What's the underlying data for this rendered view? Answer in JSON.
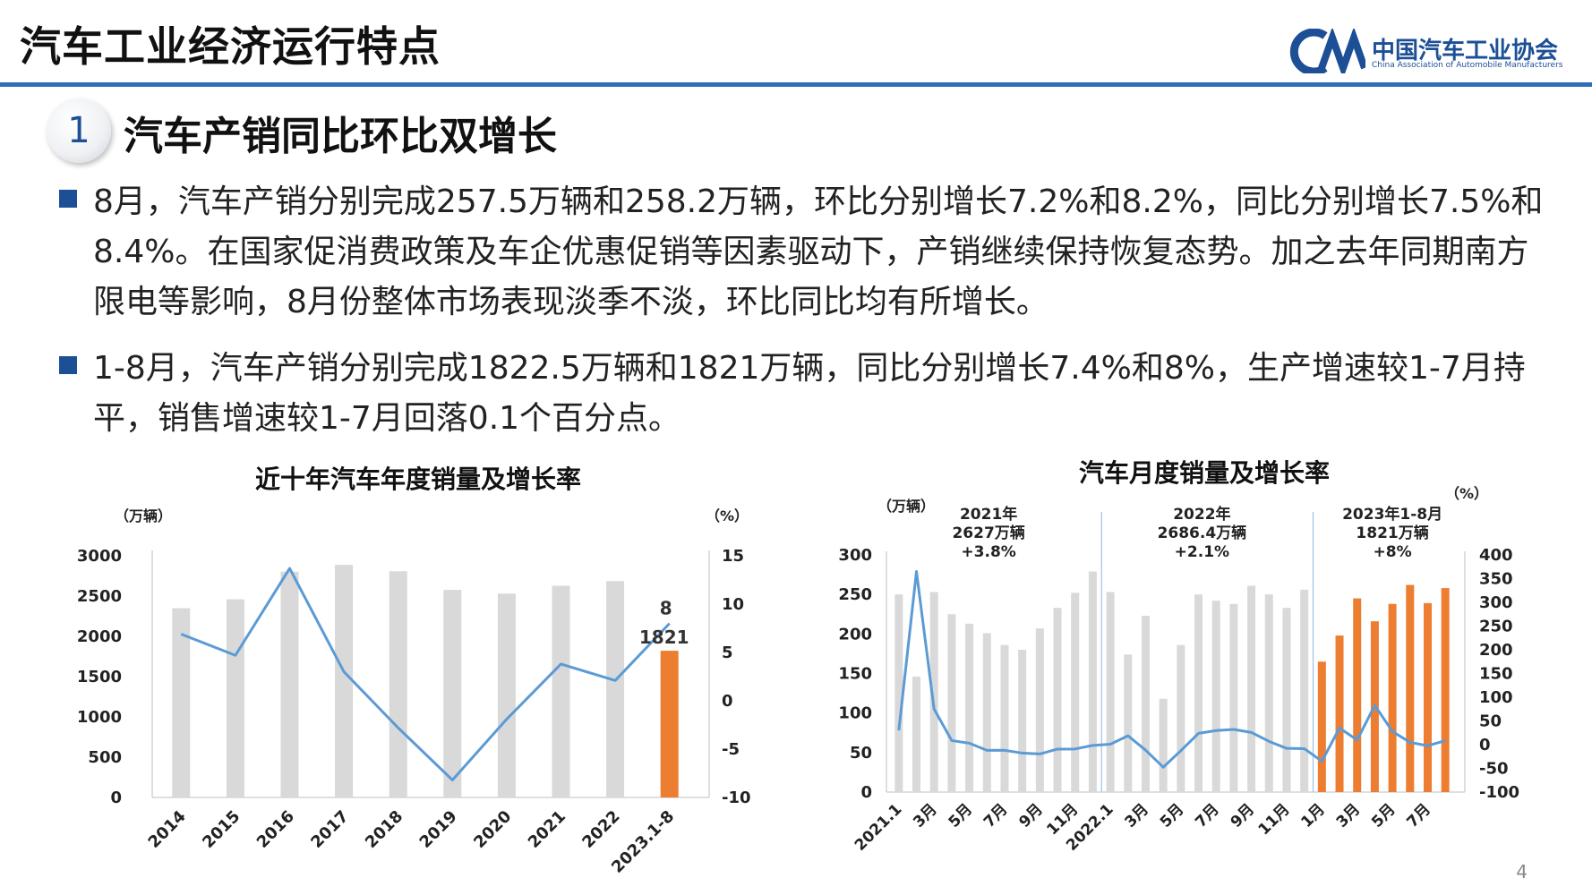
{
  "header": {
    "title": "汽车工业经济运行特点",
    "logo_cn": "中国汽车工业协会",
    "logo_en": "China Association of Automobile Manufacturers"
  },
  "section": {
    "number": "1",
    "title": "汽车产销同比环比双增长"
  },
  "bullets": [
    "8月，汽车产销分别完成257.5万辆和258.2万辆，环比分别增长7.2%和8.2%，同比分别增长7.5%和8.4%。在国家促消费政策及车企优惠促销等因素驱动下，产销继续保持恢复态势。加之去年同期南方限电等影响，8月份整体市场表现淡季不淡，环比同比均有所增长。",
    "1-8月，汽车产销分别完成1822.5万辆和1821万辆，同比分别增长7.4%和8%，生产增速较1-7月持平，销售增速较1-7月回落0.1个百分点。"
  ],
  "page_number": "4",
  "colors": {
    "accent": "#1c4f95",
    "rule": "#2f6fb5",
    "bar_gray": "#d9d9d9",
    "bar_orange": "#ed7d31",
    "line_blue": "#5b9bd5"
  },
  "chart_data": [
    {
      "type": "bar",
      "title": "近十年汽车年度销量及增长率",
      "y_unit_left": "（万辆）",
      "y_unit_right": "（%）",
      "categories": [
        "2014",
        "2015",
        "2016",
        "2017",
        "2018",
        "2019",
        "2020",
        "2021",
        "2022",
        "2023.1-8"
      ],
      "series": [
        {
          "type": "bar",
          "values": [
            2349,
            2460,
            2803,
            2888,
            2808,
            2577,
            2531,
            2628,
            2686,
            1821
          ]
        },
        {
          "type": "line",
          "axis": "right",
          "values": [
            6.9,
            4.7,
            13.7,
            3.0,
            -2.8,
            -8.2,
            -1.9,
            3.8,
            2.1,
            8
          ]
        }
      ],
      "highlight_index": 9,
      "data_labels": {
        "line_last": "8",
        "bar_last": "1821"
      },
      "ylim_left": [
        0,
        3000
      ],
      "yticks_left": [
        0,
        500,
        1000,
        1500,
        2000,
        2500,
        3000
      ],
      "ylim_right": [
        -10,
        15
      ],
      "yticks_right": [
        -10,
        -5,
        0,
        5,
        10,
        15
      ],
      "grid": false
    },
    {
      "type": "bar",
      "title": "汽车月度销量及增长率",
      "y_unit_left": "（万辆）",
      "y_unit_right": "（%）",
      "categories": [
        "2021.1",
        "2021.2",
        "2021.3",
        "2021.4",
        "2021.5",
        "2021.6",
        "2021.7",
        "2021.8",
        "2021.9",
        "2021.10",
        "2021.11",
        "2021.12",
        "2022.1",
        "2022.2",
        "2022.3",
        "2022.4",
        "2022.5",
        "2022.6",
        "2022.7",
        "2022.8",
        "2022.9",
        "2022.10",
        "2022.11",
        "2022.12",
        "2023.1",
        "2023.2",
        "2023.3",
        "2023.4",
        "2023.5",
        "2023.6",
        "2023.7",
        "2023.8"
      ],
      "tick_labels": [
        "2021.1",
        "",
        "3月",
        "",
        "5月",
        "",
        "7月",
        "",
        "9月",
        "",
        "11月",
        "",
        "2022.1",
        "",
        "3月",
        "",
        "5月",
        "",
        "7月",
        "",
        "9月",
        "",
        "11月",
        "",
        "1月",
        "",
        "3月",
        "",
        "5月",
        "",
        "7月",
        ""
      ],
      "series": [
        {
          "type": "bar",
          "values": [
            250,
            146,
            253,
            225,
            213,
            201,
            186,
            180,
            207,
            233,
            252,
            279,
            253,
            174,
            223,
            118,
            186,
            250,
            242,
            238,
            261,
            250,
            233,
            256,
            165,
            198,
            245,
            216,
            238,
            262,
            239,
            258
          ]
        },
        {
          "type": "line",
          "axis": "right",
          "values": [
            30,
            365,
            75,
            8.6,
            3.1,
            -12,
            -11.9,
            -17.8,
            -19.6,
            -9.4,
            -9.1,
            -1.6,
            0.9,
            18.7,
            -11.7,
            -47.6,
            -12.6,
            23.8,
            29.7,
            32.1,
            25.7,
            6.9,
            -7.9,
            -8.4,
            -35,
            35.2,
            9.7,
            82.7,
            27.9,
            4.8,
            -2.3,
            8.4
          ]
        }
      ],
      "bar_colors_by_year": {
        "2021": "#d9d9d9",
        "2022": "#d9d9d9",
        "2023": "#ed7d31"
      },
      "annotations": [
        {
          "lines": [
            "2021年",
            "2627万辆",
            "+3.8%"
          ]
        },
        {
          "lines": [
            "2022年",
            "2686.4万辆",
            "+2.1%"
          ]
        },
        {
          "lines": [
            "2023年1-8月",
            "1821万辆",
            "+8%"
          ]
        }
      ],
      "ylim_left": [
        0,
        300
      ],
      "yticks_left": [
        0,
        50,
        100,
        150,
        200,
        250,
        300
      ],
      "ylim_right": [
        -100,
        400
      ],
      "yticks_right": [
        -100,
        -50,
        0,
        50,
        100,
        150,
        200,
        250,
        300,
        350,
        400
      ],
      "grid": false
    }
  ]
}
